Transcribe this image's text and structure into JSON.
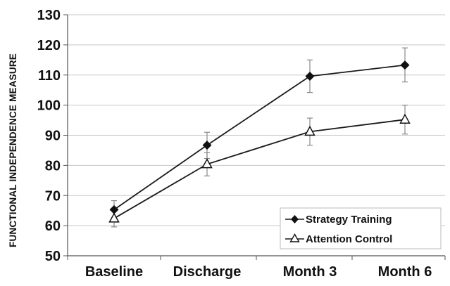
{
  "chart_data": {
    "type": "line",
    "title": "",
    "xlabel": "",
    "ylabel": "FUNCTIONAL INDEPENDENCE MEASURE",
    "categories": [
      "Baseline",
      "Discharge",
      "Month 3",
      "Month 6"
    ],
    "ylim": [
      50,
      130
    ],
    "yticks": [
      50,
      60,
      70,
      80,
      90,
      100,
      110,
      120,
      130
    ],
    "grid": "horizontal",
    "legend_position": "bottom-right",
    "series": [
      {
        "name": "Strategy Training",
        "marker": "filled-diamond",
        "color": "#1a1a1a",
        "values": [
          65.3,
          86.7,
          109.6,
          113.3
        ],
        "error_low": [
          62.3,
          82.3,
          104.2,
          107.7
        ],
        "error_high": [
          68.3,
          91.0,
          115.0,
          119.0
        ]
      },
      {
        "name": "Attention Control",
        "marker": "open-triangle",
        "color": "#1a1a1a",
        "values": [
          62.4,
          80.4,
          91.2,
          95.2
        ],
        "error_low": [
          59.6,
          76.5,
          86.7,
          90.4
        ],
        "error_high": [
          65.2,
          84.2,
          95.7,
          100.0
        ]
      }
    ]
  }
}
